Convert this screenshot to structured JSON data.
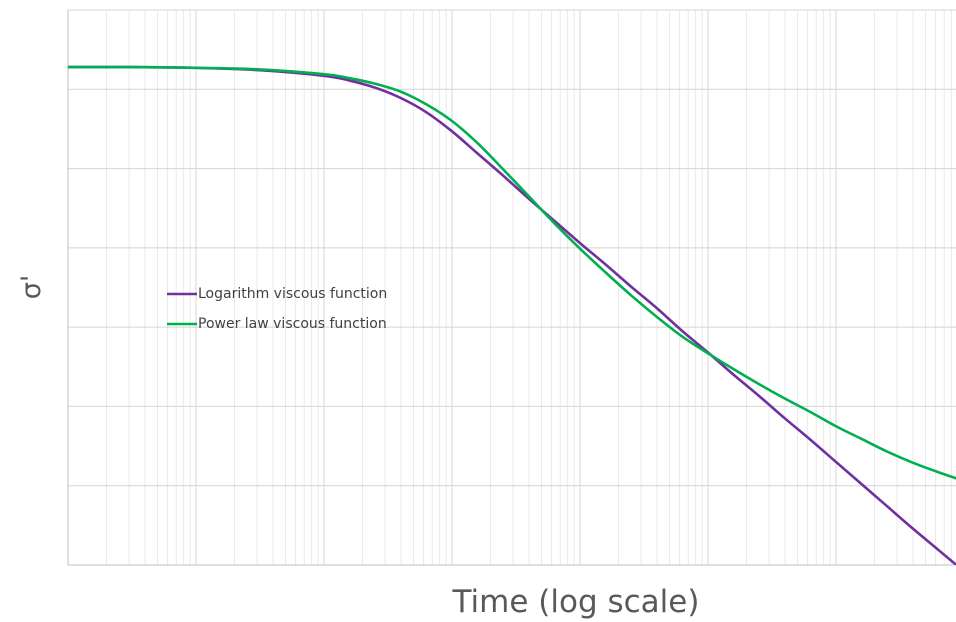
{
  "chart_data": {
    "type": "line",
    "xlabel": "Time (log scale)",
    "ylabel": "σ'",
    "x_scale": "log",
    "x_decades": 7,
    "xlim": [
      0,
      7
    ],
    "ylim": [
      0,
      7
    ],
    "grid": true,
    "tick_labels_shown": false,
    "legend_placement": "center-left",
    "series": [
      {
        "name": "Logarithm viscous function",
        "color": "#7030a0",
        "x": [
          0,
          0.5,
          1,
          1.5,
          2,
          2.2,
          2.4,
          2.6,
          2.8,
          3,
          3.2,
          3.4,
          3.6,
          3.8,
          4,
          4.2,
          4.4,
          4.6,
          4.8,
          5,
          5.2,
          5.4,
          5.6,
          5.8,
          6,
          6.2,
          6.4,
          6.6,
          6.8,
          7
        ],
        "y": [
          6.28,
          6.28,
          6.27,
          6.24,
          6.17,
          6.11,
          6.02,
          5.89,
          5.71,
          5.47,
          5.19,
          4.91,
          4.62,
          4.34,
          4.06,
          3.79,
          3.51,
          3.24,
          2.95,
          2.68,
          2.4,
          2.13,
          1.85,
          1.58,
          1.3,
          1.02,
          0.74,
          0.46,
          0.19,
          -0.08
        ]
      },
      {
        "name": "Power law viscous function",
        "color": "#00b050",
        "x": [
          0,
          0.5,
          1,
          1.5,
          2,
          2.2,
          2.4,
          2.6,
          2.8,
          3,
          3.2,
          3.4,
          3.6,
          3.8,
          4,
          4.2,
          4.4,
          4.6,
          4.8,
          5,
          5.2,
          5.4,
          5.6,
          5.8,
          6,
          6.2,
          6.4,
          6.6,
          6.8,
          7
        ],
        "y": [
          6.28,
          6.28,
          6.27,
          6.25,
          6.19,
          6.14,
          6.07,
          5.97,
          5.81,
          5.6,
          5.32,
          4.99,
          4.65,
          4.31,
          3.99,
          3.69,
          3.4,
          3.13,
          2.88,
          2.67,
          2.47,
          2.28,
          2.1,
          1.93,
          1.75,
          1.59,
          1.43,
          1.29,
          1.17,
          1.06
        ]
      }
    ]
  }
}
